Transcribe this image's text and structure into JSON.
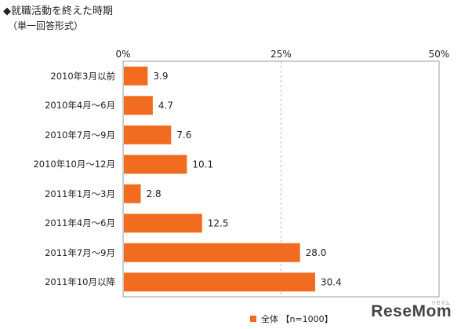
{
  "title": "◆就職活動を終えた時期",
  "subtitle": "（単一回答形式）",
  "watermark": "ReseMom",
  "watermark_sub": "リセマム",
  "legend_label": "全体 【n=1000】",
  "colors": {
    "bar": "#f26c1f",
    "axis": "#999999",
    "grid": "#bbbbbb"
  },
  "chart_data": {
    "type": "bar",
    "orientation": "horizontal",
    "title": "◆就職活動を終えた時期",
    "subtitle": "（単一回答形式）",
    "xlabel": "",
    "ylabel": "",
    "xlim": [
      0,
      50
    ],
    "ticks": [
      0,
      25,
      50
    ],
    "tick_labels": [
      "0%",
      "25%",
      "50%"
    ],
    "grid": true,
    "legend": "bottom",
    "categories": [
      "2010年3月以前",
      "2010年4月～6月",
      "2010年7月～9月",
      "2010年10月～12月",
      "2011年1月～3月",
      "2011年4月～6月",
      "2011年7月～9月",
      "2011年10月以降"
    ],
    "series": [
      {
        "name": "全体 【n=1000】",
        "values": [
          3.9,
          4.7,
          7.6,
          10.1,
          2.8,
          12.5,
          28.0,
          30.4
        ]
      }
    ]
  }
}
